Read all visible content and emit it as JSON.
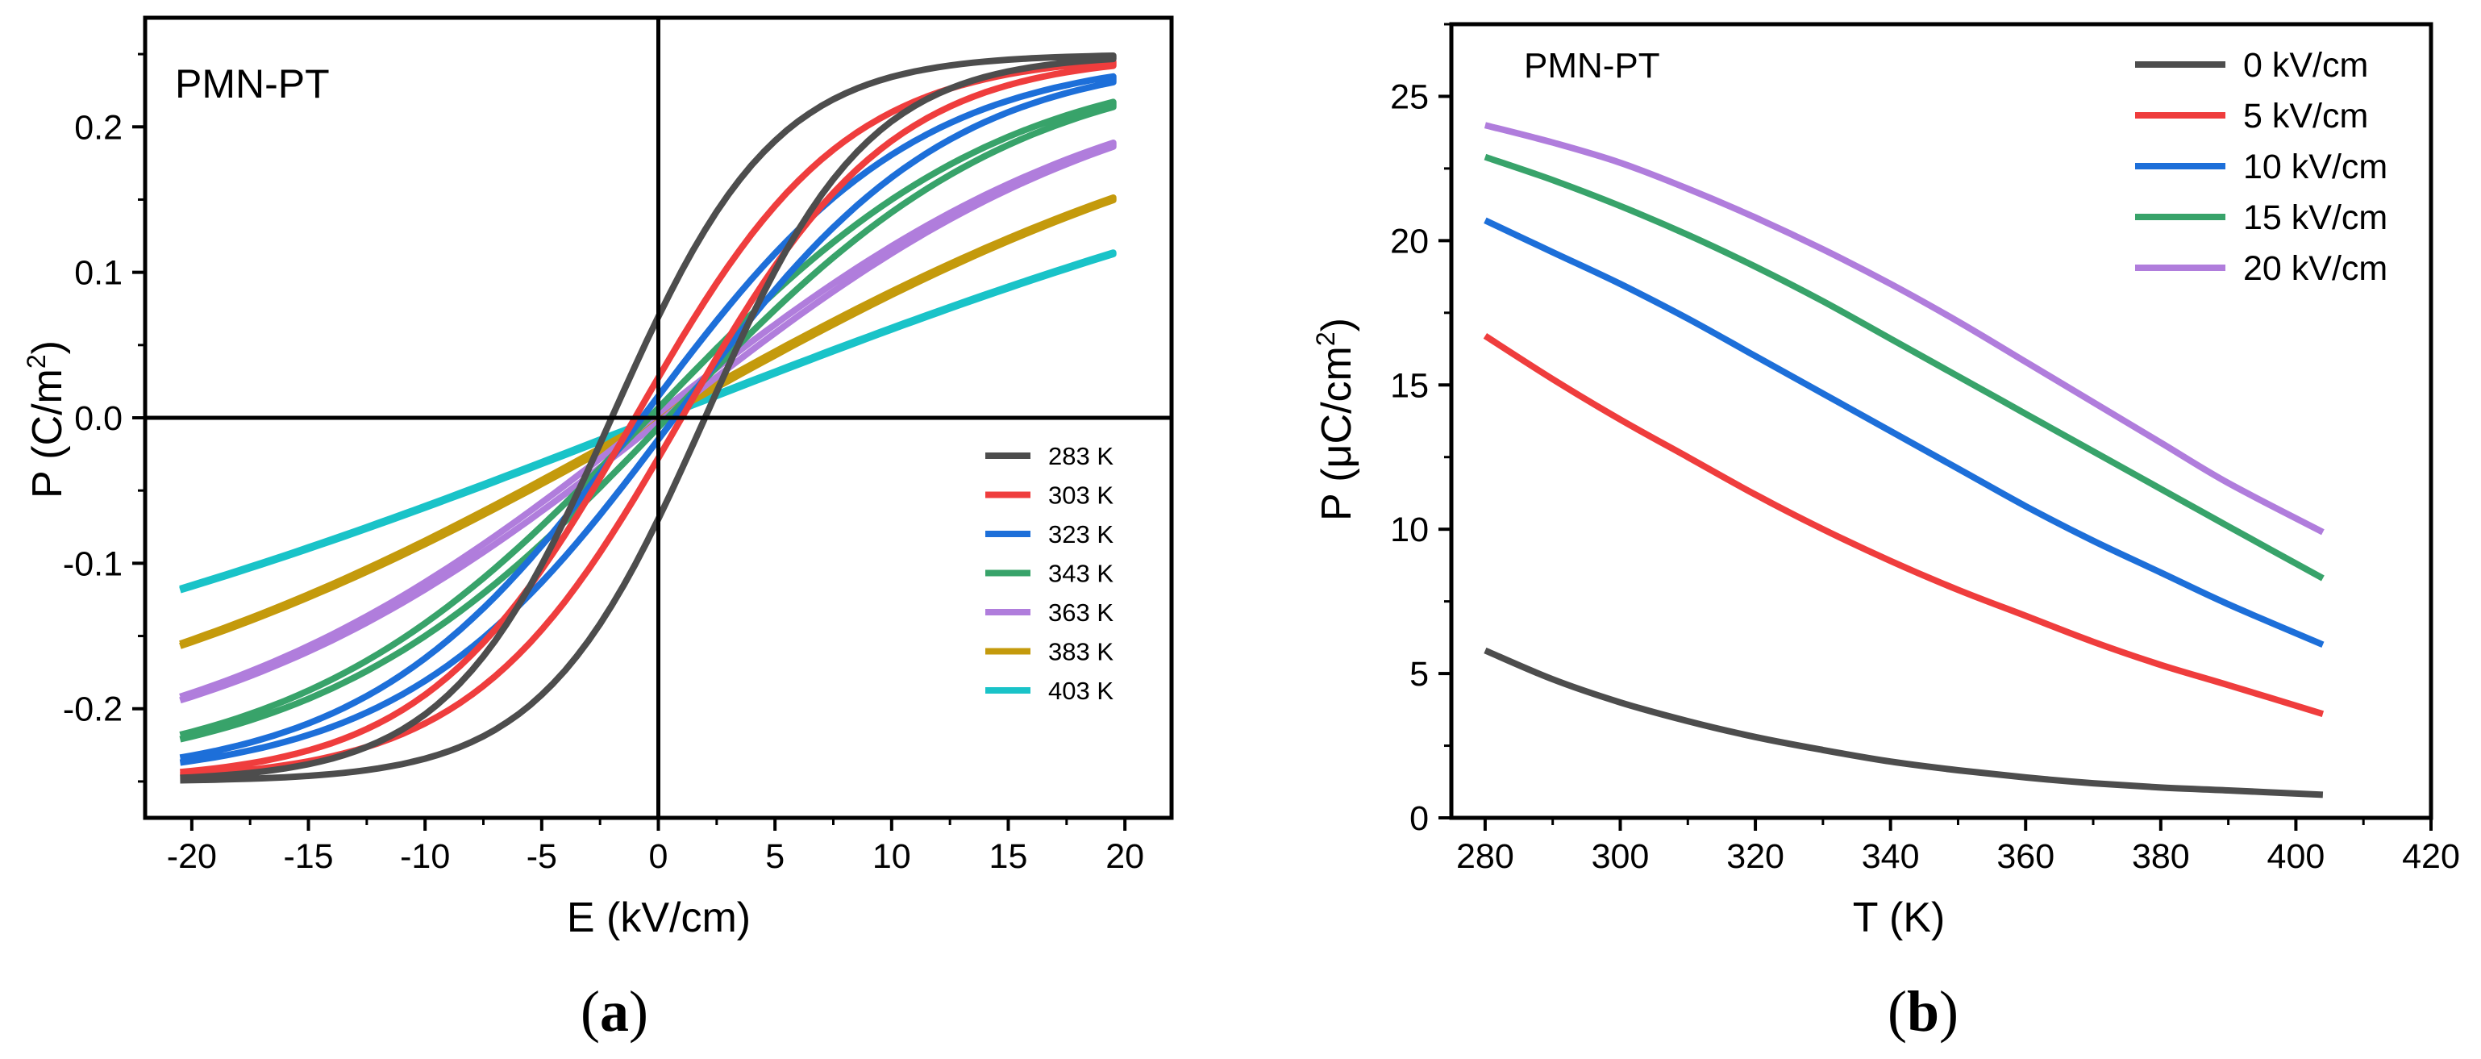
{
  "chart_data": [
    {
      "type": "line",
      "caption": "(a)",
      "caption_letter": "a",
      "title": "PMN-PT",
      "xlabel": "E (kV/cm)",
      "ylabel_prefix": "P (C/m",
      "ylabel_sup": "2",
      "ylabel_suffix": ")",
      "xlim": [
        -22,
        22
      ],
      "ylim": [
        -0.275,
        0.275
      ],
      "xticks": [
        -20,
        -15,
        -10,
        -5,
        0,
        5,
        10,
        15,
        20
      ],
      "xtick_labels": [
        "-20",
        "-15",
        "-10",
        "-5",
        "0",
        "5",
        "10",
        "15",
        "20"
      ],
      "yticks": [
        -0.2,
        -0.1,
        0.0,
        0.1,
        0.2
      ],
      "ytick_labels": [
        "-0.2",
        "-0.1",
        "0.0",
        "0.1",
        "0.2"
      ],
      "legend_position": "right",
      "e_range": [
        -20.5,
        19.5
      ],
      "series": [
        {
          "name": "283 K",
          "color": "#4d4d4d",
          "ps": 0.25,
          "shift": 2.0,
          "scale": 7.0
        },
        {
          "name": "303 K",
          "color": "#ef3d3d",
          "ps": 0.25,
          "shift": 1.0,
          "scale": 9.0
        },
        {
          "name": "323 K",
          "color": "#1d6fd9",
          "ps": 0.25,
          "shift": 0.7,
          "scale": 11.7
        },
        {
          "name": "343 K",
          "color": "#38a36a",
          "ps": 0.25,
          "shift": 0.4,
          "scale": 15.0
        },
        {
          "name": "363 K",
          "color": "#b07ddc",
          "ps": 0.25,
          "shift": 0.25,
          "scale": 20.0
        },
        {
          "name": "383 K",
          "color": "#c49a0c",
          "ps": 0.25,
          "shift": 0.15,
          "scale": 28.0
        },
        {
          "name": "403 K",
          "color": "#19c3c8",
          "ps": 0.25,
          "shift": 0.1,
          "scale": 40.0
        }
      ]
    },
    {
      "type": "line",
      "caption": "(b)",
      "caption_letter": "b",
      "title": "PMN-PT",
      "xlabel": "T (K)",
      "ylabel_prefix": "P (μC/cm",
      "ylabel_sup": "2",
      "ylabel_suffix": ")",
      "xlim": [
        275,
        420
      ],
      "ylim": [
        0,
        27.5
      ],
      "xticks": [
        280,
        300,
        320,
        340,
        360,
        380,
        400,
        420
      ],
      "xtick_labels": [
        "280",
        "300",
        "320",
        "340",
        "360",
        "380",
        "400",
        "420"
      ],
      "yticks": [
        0,
        5,
        10,
        15,
        20,
        25
      ],
      "ytick_labels": [
        "0",
        "5",
        "10",
        "15",
        "20",
        "25"
      ],
      "legend_position": "top-right",
      "x": [
        280,
        290,
        300,
        310,
        320,
        330,
        340,
        350,
        360,
        370,
        380,
        390,
        404
      ],
      "series": [
        {
          "name": "0 kV/cm",
          "color": "#4d4d4d",
          "values": [
            5.8,
            4.8,
            4.0,
            3.35,
            2.8,
            2.35,
            1.95,
            1.65,
            1.4,
            1.2,
            1.05,
            0.95,
            0.8
          ]
        },
        {
          "name": "5 kV/cm",
          "color": "#ef3d3d",
          "values": [
            16.7,
            15.2,
            13.8,
            12.5,
            11.2,
            10.0,
            8.9,
            7.9,
            7.0,
            6.1,
            5.3,
            4.6,
            3.6
          ]
        },
        {
          "name": "10 kV/cm",
          "color": "#1d6fd9",
          "values": [
            20.7,
            19.6,
            18.5,
            17.3,
            16.0,
            14.7,
            13.4,
            12.1,
            10.8,
            9.6,
            8.5,
            7.4,
            6.0
          ]
        },
        {
          "name": "15 kV/cm",
          "color": "#38a36a",
          "values": [
            22.9,
            22.1,
            21.2,
            20.2,
            19.1,
            17.9,
            16.6,
            15.3,
            14.0,
            12.7,
            11.4,
            10.1,
            8.3
          ]
        },
        {
          "name": "20 kV/cm",
          "color": "#b07ddc",
          "values": [
            24.0,
            23.4,
            22.7,
            21.8,
            20.8,
            19.7,
            18.5,
            17.2,
            15.8,
            14.4,
            13.0,
            11.6,
            9.9
          ]
        }
      ]
    }
  ]
}
